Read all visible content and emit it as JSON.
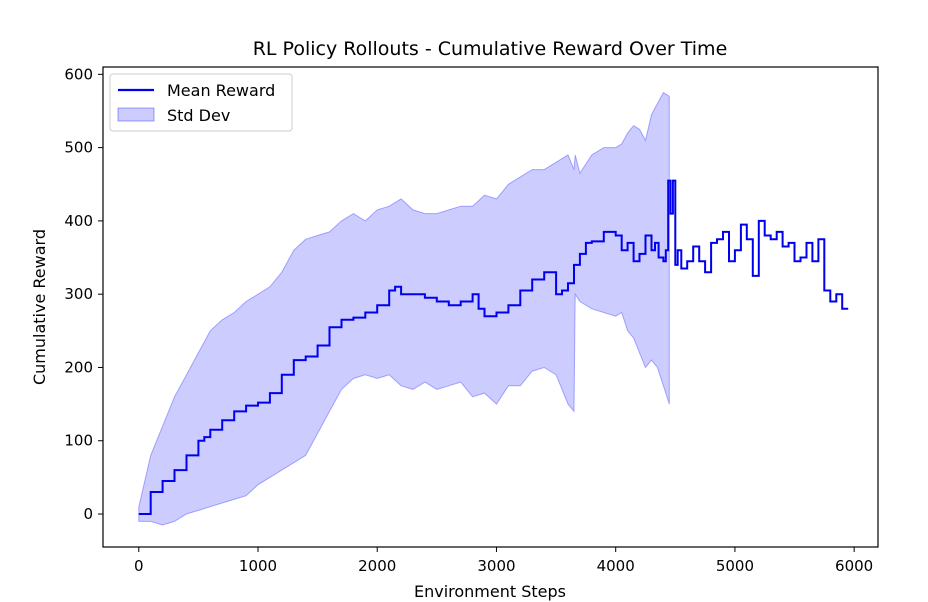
{
  "chart_data": {
    "type": "line",
    "title": "RL Policy Rollouts - Cumulative Reward Over Time",
    "xlabel": "Environment Steps",
    "ylabel": "Cumulative Reward",
    "xlim": [
      -300,
      6200
    ],
    "ylim": [
      -45,
      610
    ],
    "xticks": [
      0,
      1000,
      2000,
      3000,
      4000,
      5000,
      6000
    ],
    "yticks": [
      0,
      100,
      200,
      300,
      400,
      500,
      600
    ],
    "grid": false,
    "legend_position": "top-left",
    "legend": [
      {
        "label": "Mean Reward",
        "kind": "line",
        "color": "#0000ee"
      },
      {
        "label": "Std Dev",
        "kind": "patch",
        "color": "#0000ff",
        "alpha": 0.2
      }
    ],
    "series": [
      {
        "name": "Mean Reward",
        "color": "#0000ee",
        "step": true,
        "x": [
          0,
          100,
          200,
          300,
          400,
          500,
          550,
          600,
          700,
          800,
          900,
          1000,
          1100,
          1200,
          1300,
          1400,
          1500,
          1600,
          1700,
          1800,
          1900,
          2000,
          2100,
          2150,
          2200,
          2300,
          2400,
          2500,
          2600,
          2700,
          2800,
          2850,
          2900,
          3000,
          3100,
          3200,
          3300,
          3400,
          3500,
          3550,
          3600,
          3650,
          3700,
          3750,
          3800,
          3900,
          4000,
          4050,
          4100,
          4150,
          4200,
          4250,
          4300,
          4330,
          4360,
          4400,
          4420,
          4440,
          4460,
          4480,
          4500,
          4520,
          4550,
          4600,
          4650,
          4700,
          4750,
          4800,
          4850,
          4900,
          4950,
          5000,
          5050,
          5100,
          5150,
          5200,
          5250,
          5300,
          5350,
          5400,
          5450,
          5500,
          5550,
          5600,
          5650,
          5700,
          5750,
          5800,
          5850,
          5900,
          5950
        ],
        "y": [
          0,
          30,
          45,
          60,
          80,
          100,
          105,
          115,
          128,
          140,
          148,
          152,
          165,
          190,
          210,
          215,
          230,
          255,
          265,
          268,
          275,
          285,
          305,
          310,
          300,
          300,
          295,
          290,
          285,
          290,
          300,
          280,
          270,
          275,
          285,
          305,
          320,
          330,
          300,
          305,
          315,
          340,
          355,
          370,
          372,
          385,
          380,
          360,
          370,
          345,
          355,
          380,
          360,
          370,
          350,
          345,
          360,
          455,
          410,
          455,
          340,
          360,
          335,
          345,
          365,
          345,
          330,
          370,
          375,
          385,
          345,
          360,
          395,
          375,
          325,
          400,
          380,
          375,
          385,
          365,
          370,
          345,
          350,
          370,
          345,
          375,
          305,
          290,
          300,
          280,
          280
        ]
      },
      {
        "name": "Std Dev",
        "color": "#0000ff",
        "alpha": 0.2,
        "x": [
          0,
          100,
          200,
          300,
          400,
          500,
          600,
          700,
          800,
          900,
          1000,
          1100,
          1200,
          1300,
          1400,
          1500,
          1600,
          1700,
          1800,
          1900,
          2000,
          2100,
          2200,
          2300,
          2400,
          2500,
          2600,
          2700,
          2800,
          2900,
          3000,
          3100,
          3200,
          3300,
          3400,
          3500,
          3600,
          3650,
          3660,
          3700,
          3800,
          3900,
          4000,
          4050,
          4100,
          4150,
          4200,
          4250,
          4300,
          4350,
          4400,
          4450
        ],
        "upper": [
          10,
          80,
          120,
          160,
          190,
          220,
          250,
          265,
          275,
          290,
          300,
          310,
          330,
          360,
          375,
          380,
          385,
          400,
          410,
          400,
          415,
          420,
          430,
          415,
          410,
          410,
          415,
          420,
          420,
          435,
          430,
          450,
          460,
          470,
          470,
          480,
          490,
          470,
          490,
          465,
          490,
          500,
          500,
          505,
          520,
          530,
          525,
          510,
          545,
          560,
          575,
          570
        ],
        "lower": [
          -10,
          -10,
          -15,
          -10,
          0,
          5,
          10,
          15,
          20,
          25,
          40,
          50,
          60,
          70,
          80,
          110,
          140,
          170,
          185,
          190,
          185,
          190,
          175,
          170,
          180,
          170,
          175,
          180,
          160,
          165,
          150,
          175,
          175,
          195,
          200,
          190,
          150,
          140,
          300,
          290,
          280,
          275,
          270,
          275,
          250,
          240,
          220,
          200,
          210,
          200,
          175,
          150
        ]
      }
    ]
  }
}
